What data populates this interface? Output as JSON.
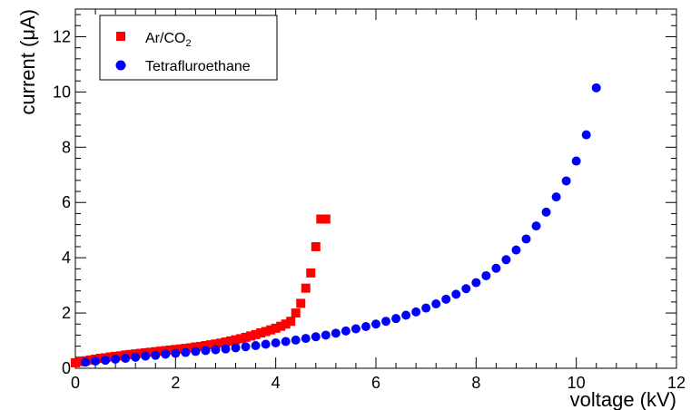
{
  "chart_data": {
    "type": "scatter",
    "title": "",
    "xlabel": "voltage (kV)",
    "ylabel": "current (μA)",
    "xlim": [
      0,
      12
    ],
    "ylim": [
      0,
      13
    ],
    "x_ticks": [
      0,
      2,
      4,
      6,
      8,
      10,
      12
    ],
    "y_ticks": [
      0,
      2,
      4,
      6,
      8,
      10,
      12
    ],
    "grid": false,
    "legend_position": "top-left",
    "series": [
      {
        "name": "Ar/CO2",
        "legend_main": "Ar/CO",
        "legend_sub": "2",
        "marker": "square",
        "color": "#ff0000",
        "x": [
          0.0,
          0.1,
          0.2,
          0.3,
          0.4,
          0.5,
          0.6,
          0.7,
          0.8,
          0.9,
          1.0,
          1.1,
          1.2,
          1.3,
          1.4,
          1.5,
          1.6,
          1.7,
          1.8,
          1.9,
          2.0,
          2.1,
          2.2,
          2.3,
          2.4,
          2.5,
          2.6,
          2.7,
          2.8,
          2.9,
          3.0,
          3.1,
          3.2,
          3.3,
          3.4,
          3.5,
          3.6,
          3.7,
          3.8,
          3.9,
          4.0,
          4.1,
          4.2,
          4.3,
          4.4,
          4.5,
          4.6,
          4.7,
          4.8,
          4.9,
          5.0
        ],
        "y": [
          0.2,
          0.24,
          0.27,
          0.3,
          0.33,
          0.36,
          0.38,
          0.41,
          0.43,
          0.45,
          0.48,
          0.5,
          0.52,
          0.54,
          0.56,
          0.58,
          0.6,
          0.62,
          0.64,
          0.66,
          0.68,
          0.7,
          0.72,
          0.74,
          0.77,
          0.79,
          0.82,
          0.85,
          0.88,
          0.91,
          0.95,
          0.99,
          1.03,
          1.07,
          1.12,
          1.17,
          1.22,
          1.28,
          1.33,
          1.39,
          1.45,
          1.52,
          1.6,
          1.7,
          2.0,
          2.35,
          2.9,
          3.45,
          4.4,
          5.4,
          5.4
        ]
      },
      {
        "name": "Tetrafluroethane",
        "marker": "circle",
        "color": "#0000ff",
        "x": [
          0.2,
          0.4,
          0.6,
          0.8,
          1.0,
          1.2,
          1.4,
          1.6,
          1.8,
          2.0,
          2.2,
          2.4,
          2.6,
          2.8,
          3.0,
          3.2,
          3.4,
          3.6,
          3.8,
          4.0,
          4.2,
          4.4,
          4.6,
          4.8,
          5.0,
          5.2,
          5.4,
          5.6,
          5.8,
          6.0,
          6.2,
          6.4,
          6.6,
          6.8,
          7.0,
          7.2,
          7.4,
          7.6,
          7.8,
          8.0,
          8.2,
          8.4,
          8.6,
          8.8,
          9.0,
          9.2,
          9.4,
          9.6,
          9.8,
          10.0,
          10.2,
          10.4
        ],
        "y": [
          0.22,
          0.26,
          0.29,
          0.33,
          0.36,
          0.4,
          0.44,
          0.47,
          0.51,
          0.54,
          0.57,
          0.61,
          0.64,
          0.67,
          0.7,
          0.74,
          0.78,
          0.82,
          0.87,
          0.92,
          0.97,
          1.02,
          1.08,
          1.14,
          1.2,
          1.27,
          1.35,
          1.43,
          1.51,
          1.6,
          1.7,
          1.8,
          1.92,
          2.04,
          2.18,
          2.33,
          2.5,
          2.68,
          2.88,
          3.1,
          3.35,
          3.62,
          3.93,
          4.28,
          4.68,
          5.15,
          5.65,
          6.2,
          6.78,
          7.5,
          8.45,
          10.15
        ]
      }
    ]
  }
}
